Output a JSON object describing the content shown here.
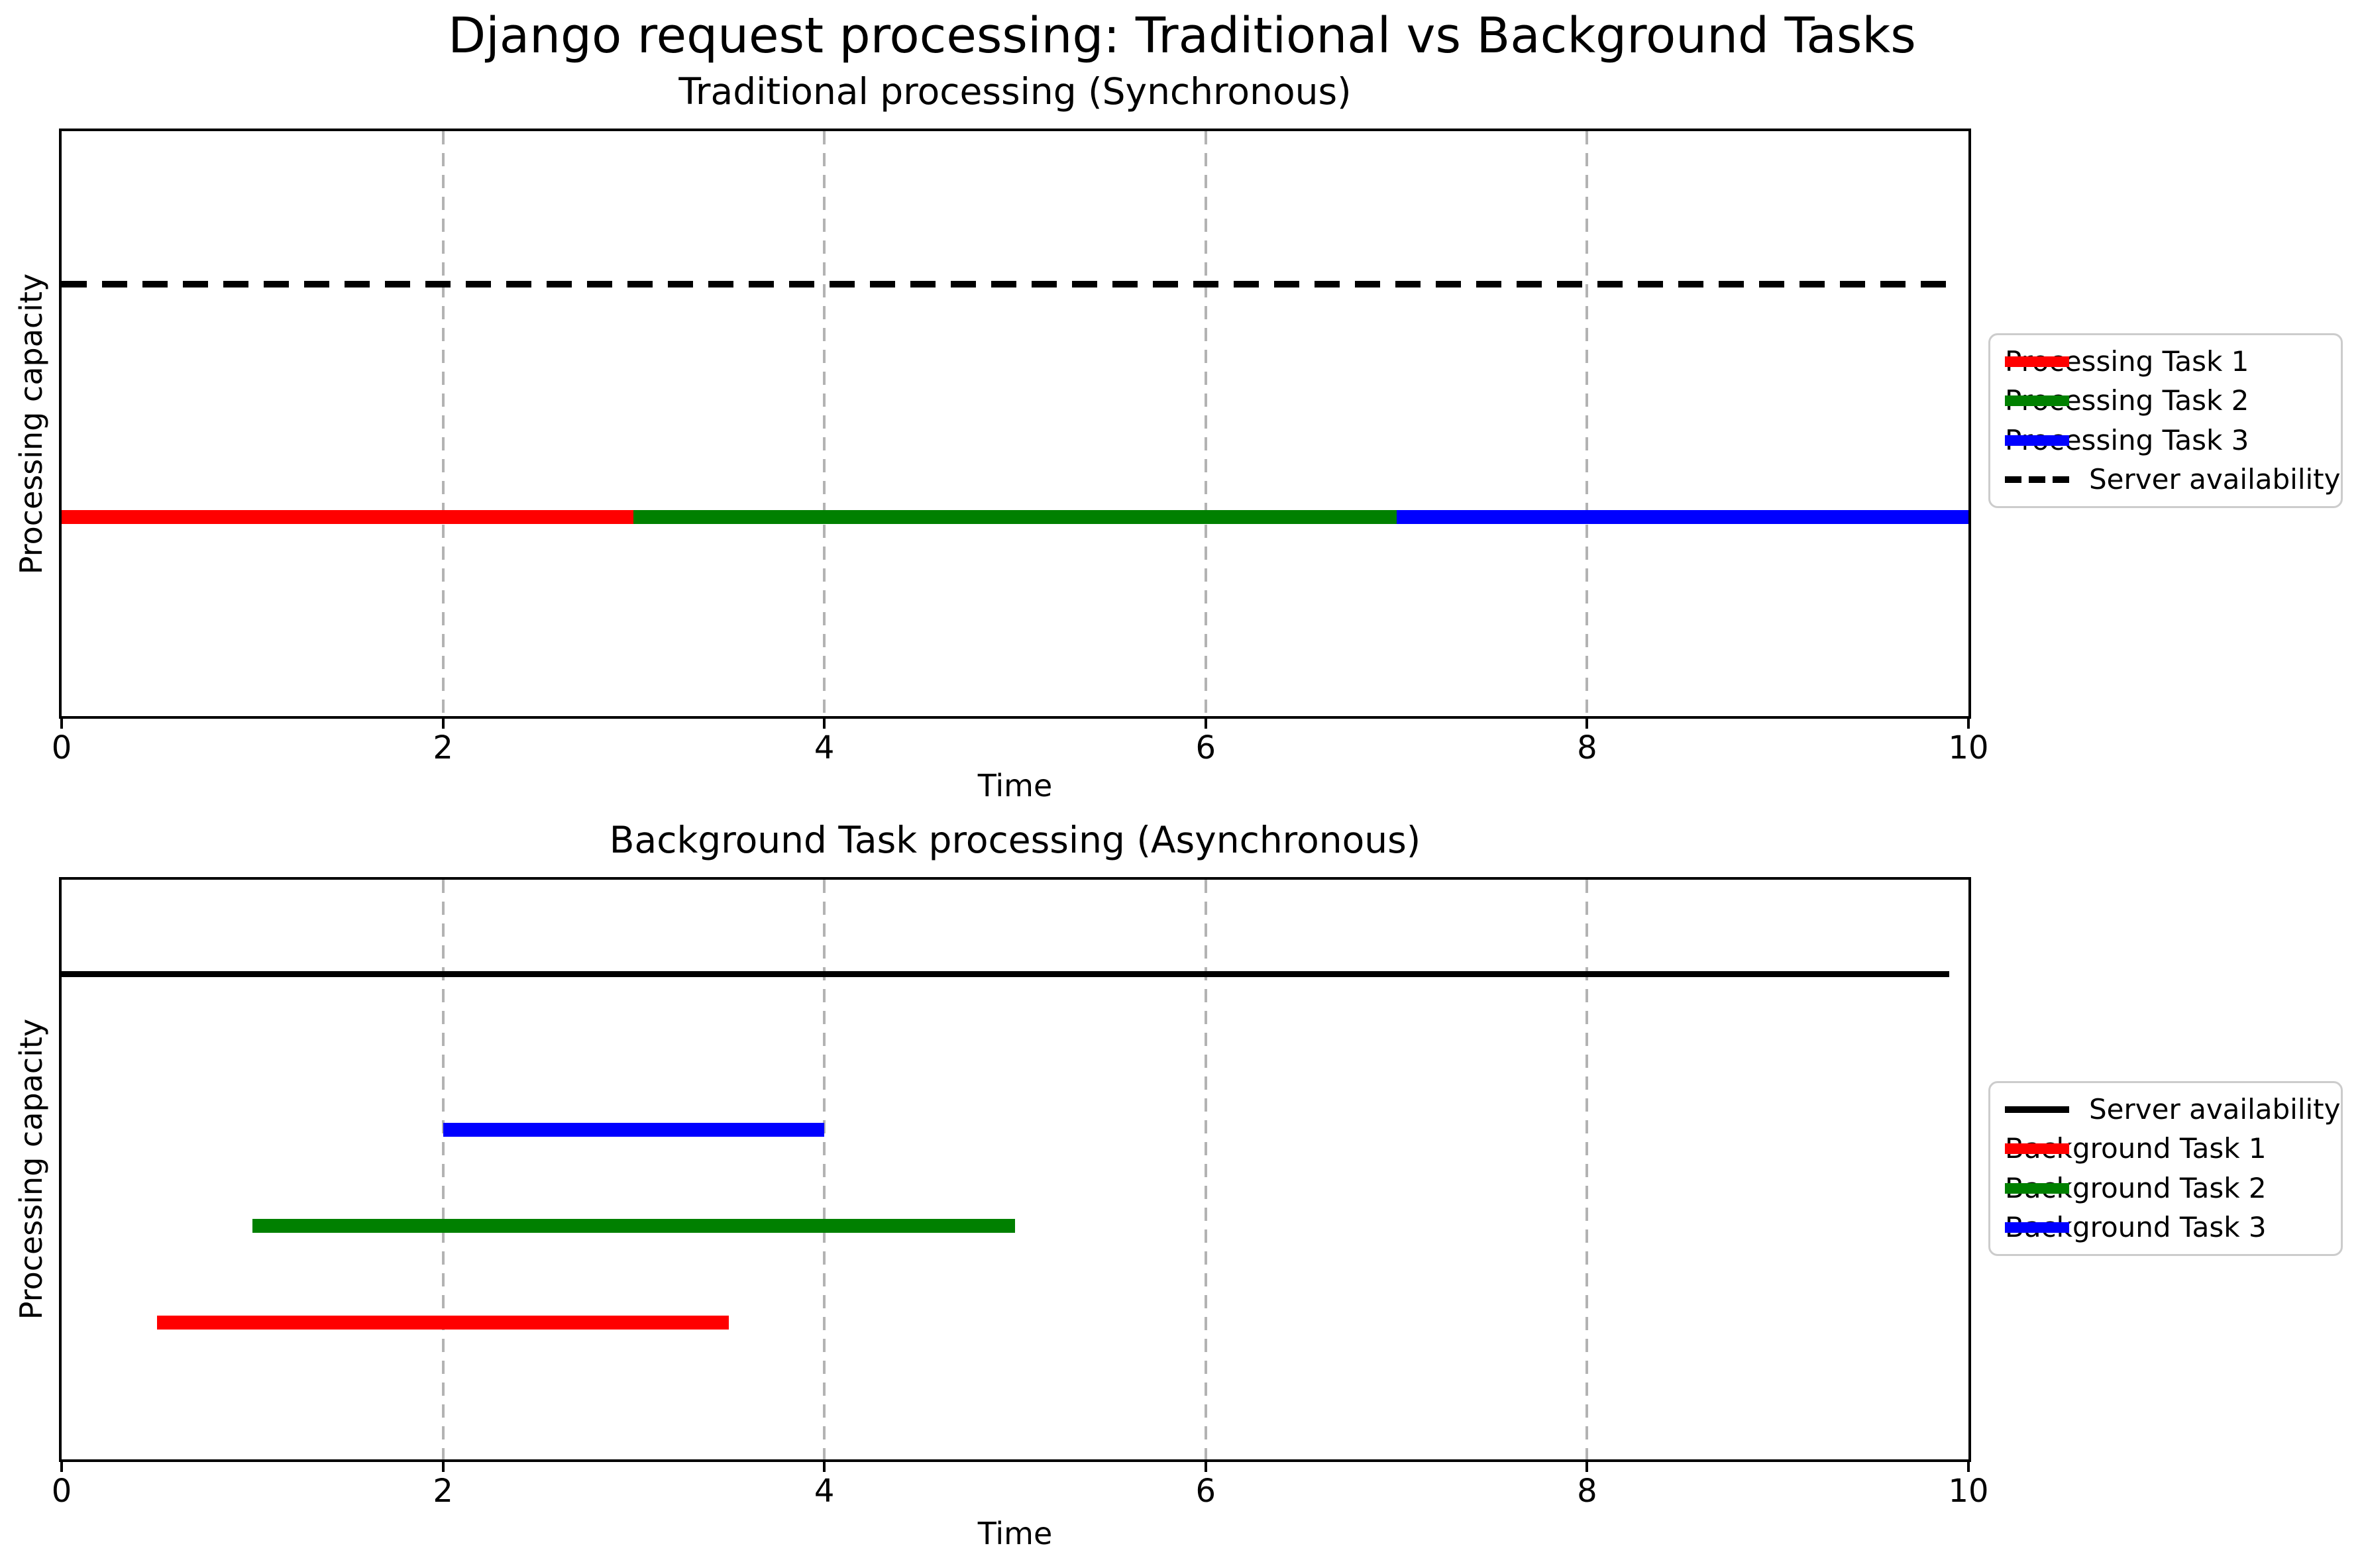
{
  "page": {
    "title": "Django request processing: Traditional vs Background Tasks"
  },
  "colors": {
    "task_red": "#ff0000",
    "task_green": "#008000",
    "task_blue": "#0000ff",
    "availability_black": "#000000",
    "grid_gray": "#b3b3b3",
    "legend_border_gray": "#cccccc"
  },
  "chart_data": [
    {
      "type": "timeline",
      "title": "Traditional processing (Synchronous)",
      "xlabel": "Time",
      "ylabel": "Processing capacity",
      "xlim": [
        0,
        10
      ],
      "xticks": [
        "0",
        "2",
        "4",
        "6",
        "8",
        "10"
      ],
      "xtick_values": [
        0,
        2,
        4,
        6,
        8,
        10
      ],
      "grid_x_values": [
        2,
        4,
        6,
        8
      ],
      "grid": "vertical dashed light-gray",
      "legend_position": "outside center-right",
      "items": [
        {
          "label": "Processing Task 1",
          "color": "#ff0000",
          "style": "bar",
          "x_start": 0,
          "x_end": 3,
          "y_frac_from_top": 0.66
        },
        {
          "label": "Processing Task 2",
          "color": "#008000",
          "style": "bar",
          "x_start": 3,
          "x_end": 7,
          "y_frac_from_top": 0.66
        },
        {
          "label": "Processing Task 3",
          "color": "#0000ff",
          "style": "bar",
          "x_start": 7,
          "x_end": 10,
          "y_frac_from_top": 0.66
        },
        {
          "label": "Server availability",
          "color": "#000000",
          "style": "dashed-line",
          "x_start": 0,
          "x_end": 9.9,
          "y_frac_from_top": 0.262
        }
      ],
      "legend": [
        {
          "label": "Processing Task 1",
          "color": "#ff0000",
          "sample": "bar"
        },
        {
          "label": "Processing Task 2",
          "color": "#008000",
          "sample": "bar"
        },
        {
          "label": "Processing Task 3",
          "color": "#0000ff",
          "sample": "bar"
        },
        {
          "label": "Server availability",
          "color": "#000000",
          "sample": "dashed-line"
        }
      ]
    },
    {
      "type": "timeline",
      "title": "Background Task processing (Asynchronous)",
      "xlabel": "Time",
      "ylabel": "Processing capacity",
      "xlim": [
        0,
        10
      ],
      "xticks": [
        "0",
        "2",
        "4",
        "6",
        "8",
        "10"
      ],
      "xtick_values": [
        0,
        2,
        4,
        6,
        8,
        10
      ],
      "grid_x_values": [
        2,
        4,
        6,
        8
      ],
      "grid": "vertical dashed light-gray",
      "legend_position": "outside center-right",
      "items": [
        {
          "label": "Server availability",
          "color": "#000000",
          "style": "solid-line",
          "x_start": 0,
          "x_end": 9.9,
          "y_frac_from_top": 0.163
        },
        {
          "label": "Background Task 3",
          "color": "#0000ff",
          "style": "bar",
          "x_start": 2,
          "x_end": 4,
          "y_frac_from_top": 0.431
        },
        {
          "label": "Background Task 2",
          "color": "#008000",
          "style": "bar",
          "x_start": 1,
          "x_end": 5,
          "y_frac_from_top": 0.597
        },
        {
          "label": "Background Task 1",
          "color": "#ff0000",
          "style": "bar",
          "x_start": 0.5,
          "x_end": 3.5,
          "y_frac_from_top": 0.764
        }
      ],
      "legend": [
        {
          "label": "Server availability",
          "color": "#000000",
          "sample": "solid-line"
        },
        {
          "label": "Background Task 1",
          "color": "#ff0000",
          "sample": "bar"
        },
        {
          "label": "Background Task 2",
          "color": "#008000",
          "sample": "bar"
        },
        {
          "label": "Background Task 3",
          "color": "#0000ff",
          "sample": "bar"
        }
      ]
    }
  ]
}
